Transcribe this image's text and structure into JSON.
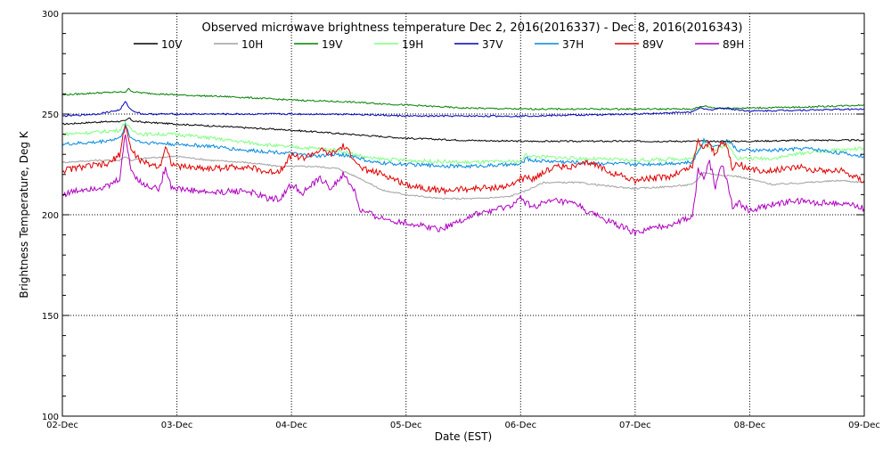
{
  "chart_data": {
    "type": "line",
    "title": "Observed microwave brightness temperature Dec  2, 2016(2016337) - Dec  8, 2016(2016343)",
    "xlabel": "Date (EST)",
    "ylabel": "Brightness Temperature, Deg K",
    "xlim": [
      0,
      7
    ],
    "ylim": [
      100,
      300
    ],
    "xticks": [
      {
        "value": 0,
        "label": "02-Dec"
      },
      {
        "value": 1,
        "label": "03-Dec"
      },
      {
        "value": 2,
        "label": "04-Dec"
      },
      {
        "value": 3,
        "label": "05-Dec"
      },
      {
        "value": 4,
        "label": "06-Dec"
      },
      {
        "value": 5,
        "label": "07-Dec"
      },
      {
        "value": 6,
        "label": "08-Dec"
      },
      {
        "value": 7,
        "label": "09-Dec"
      }
    ],
    "yticks": [
      {
        "value": 100,
        "label": "100"
      },
      {
        "value": 150,
        "label": "150"
      },
      {
        "value": 200,
        "label": "200"
      },
      {
        "value": 250,
        "label": "250"
      },
      {
        "value": 300,
        "label": "300"
      }
    ],
    "grid": true,
    "legend_position": "top",
    "series": [
      {
        "name": "10V",
        "color": "#000000",
        "x": [
          0,
          0.3,
          0.55,
          0.58,
          0.62,
          0.7,
          1.0,
          1.5,
          2.0,
          2.5,
          3.0,
          3.5,
          4.0,
          4.5,
          5.0,
          5.5,
          6.0,
          6.5,
          7.0
        ],
        "y": [
          245,
          246,
          246.5,
          248,
          246.5,
          246,
          245,
          243.5,
          242,
          240,
          238,
          237,
          236.5,
          236.5,
          236.5,
          236.5,
          236.5,
          237,
          237
        ]
      },
      {
        "name": "10H",
        "color": "#a0a0a0",
        "x": [
          0,
          0.3,
          0.5,
          0.55,
          0.6,
          0.7,
          1.0,
          1.3,
          1.6,
          1.9,
          2.2,
          2.4,
          2.6,
          2.8,
          3.0,
          3.3,
          3.6,
          3.9,
          4.05,
          4.2,
          4.5,
          4.8,
          5.0,
          5.3,
          5.5,
          5.6,
          5.7,
          5.9,
          6.2,
          6.5,
          6.8,
          7.0
        ],
        "y": [
          226,
          227,
          227,
          229,
          227,
          228,
          229,
          227,
          226,
          224,
          224,
          223,
          218,
          212,
          210,
          208,
          208,
          209,
          212,
          216,
          216,
          214,
          213,
          214,
          215,
          221,
          220,
          219,
          215,
          216,
          217,
          216
        ]
      },
      {
        "name": "19V",
        "color": "#008000",
        "x": [
          0,
          0.3,
          0.55,
          0.58,
          0.62,
          0.7,
          1.0,
          1.5,
          2.0,
          2.5,
          3.0,
          3.5,
          4.0,
          4.5,
          5.0,
          5.5,
          5.6,
          5.7,
          6.0,
          6.5,
          7.0
        ],
        "y": [
          259.5,
          260.5,
          261,
          262.5,
          261,
          260.5,
          259.5,
          258.5,
          257,
          256,
          254.5,
          253,
          252.5,
          252.5,
          252.5,
          252.5,
          254,
          253,
          253,
          253.5,
          254.5
        ]
      },
      {
        "name": "19H",
        "color": "#80ff80",
        "x": [
          0,
          0.3,
          0.5,
          0.55,
          0.6,
          0.7,
          1.0,
          1.3,
          1.6,
          1.9,
          2.2,
          2.4,
          2.55,
          2.7,
          3.0,
          3.5,
          4.0,
          4.05,
          4.1,
          4.5,
          5.0,
          5.5,
          5.6,
          5.7,
          5.8,
          5.9,
          6.2,
          6.5,
          7.0
        ],
        "y": [
          240,
          241,
          242,
          246,
          242,
          240,
          240,
          238,
          236,
          234,
          233,
          232,
          230,
          228,
          227,
          226,
          226.5,
          230,
          229,
          228,
          227,
          228,
          236,
          232,
          235,
          228,
          228,
          231,
          233
        ]
      },
      {
        "name": "37V",
        "color": "#0000c0",
        "x": [
          0,
          0.3,
          0.5,
          0.55,
          0.6,
          0.7,
          1.0,
          1.5,
          2.0,
          2.5,
          3.0,
          3.5,
          4.0,
          4.5,
          5.0,
          5.5,
          5.55,
          5.65,
          5.75,
          6.0,
          6.5,
          7.0
        ],
        "y": [
          249,
          250,
          252,
          256,
          252,
          250,
          250,
          250,
          250,
          250,
          249,
          249,
          249,
          249.5,
          250,
          251,
          253,
          252,
          253,
          251.5,
          252,
          252.5
        ]
      },
      {
        "name": "37H",
        "color": "#0088dd",
        "x": [
          0,
          0.3,
          0.5,
          0.55,
          0.6,
          0.7,
          1.0,
          1.3,
          1.6,
          1.9,
          2.2,
          2.4,
          2.55,
          2.7,
          3.0,
          3.5,
          4.0,
          4.05,
          4.1,
          4.5,
          5.0,
          5.5,
          5.6,
          5.7,
          5.8,
          5.9,
          6.2,
          6.5,
          7.0
        ],
        "y": [
          235,
          236,
          238,
          244,
          238,
          236,
          235,
          234,
          232,
          231,
          229,
          230,
          229,
          226,
          225,
          224,
          225,
          228,
          227,
          226,
          225,
          226,
          237,
          234,
          237,
          232,
          232,
          233,
          229
        ]
      },
      {
        "name": "89V",
        "color": "#e00000",
        "x": [
          0,
          0.2,
          0.4,
          0.5,
          0.55,
          0.6,
          0.7,
          0.85,
          0.9,
          0.95,
          1.0,
          1.3,
          1.6,
          1.8,
          1.9,
          2.0,
          2.1,
          2.25,
          2.35,
          2.45,
          2.55,
          2.6,
          2.8,
          3.0,
          3.3,
          3.6,
          3.9,
          4.0,
          4.1,
          4.3,
          4.5,
          4.6,
          4.8,
          5.0,
          5.3,
          5.5,
          5.55,
          5.6,
          5.65,
          5.7,
          5.75,
          5.8,
          5.85,
          5.9,
          6.0,
          6.2,
          6.4,
          6.6,
          6.8,
          7.0
        ],
        "y": [
          222,
          224,
          225,
          230,
          245,
          232,
          226,
          224,
          234,
          226,
          224,
          223,
          224,
          221,
          222,
          230,
          228,
          232,
          230,
          234,
          228,
          223,
          220,
          215,
          212,
          213,
          214,
          218,
          218,
          224,
          224,
          226,
          221,
          217,
          219,
          224,
          237,
          233,
          236,
          229,
          236,
          235,
          222,
          226,
          222,
          222,
          224,
          222,
          222,
          217
        ]
      },
      {
        "name": "89H",
        "color": "#b000c0",
        "x": [
          0,
          0.2,
          0.4,
          0.5,
          0.55,
          0.6,
          0.7,
          0.85,
          0.9,
          0.95,
          1.0,
          1.3,
          1.6,
          1.8,
          1.9,
          2.0,
          2.1,
          2.25,
          2.35,
          2.45,
          2.55,
          2.6,
          2.8,
          3.0,
          3.3,
          3.6,
          3.9,
          4.0,
          4.1,
          4.3,
          4.5,
          4.6,
          4.8,
          5.0,
          5.3,
          5.5,
          5.55,
          5.6,
          5.65,
          5.7,
          5.75,
          5.8,
          5.85,
          5.9,
          6.0,
          6.2,
          6.4,
          6.6,
          6.8,
          7.0
        ],
        "y": [
          210,
          213,
          214,
          218,
          240,
          222,
          215,
          213,
          224,
          214,
          213,
          211,
          212,
          208,
          208,
          215,
          211,
          218,
          213,
          220,
          212,
          202,
          198,
          196,
          193,
          200,
          204,
          208,
          204,
          207,
          205,
          201,
          196,
          191,
          195,
          199,
          222,
          219,
          226,
          214,
          225,
          218,
          204,
          206,
          202,
          205,
          207,
          206,
          206,
          203
        ]
      }
    ]
  }
}
